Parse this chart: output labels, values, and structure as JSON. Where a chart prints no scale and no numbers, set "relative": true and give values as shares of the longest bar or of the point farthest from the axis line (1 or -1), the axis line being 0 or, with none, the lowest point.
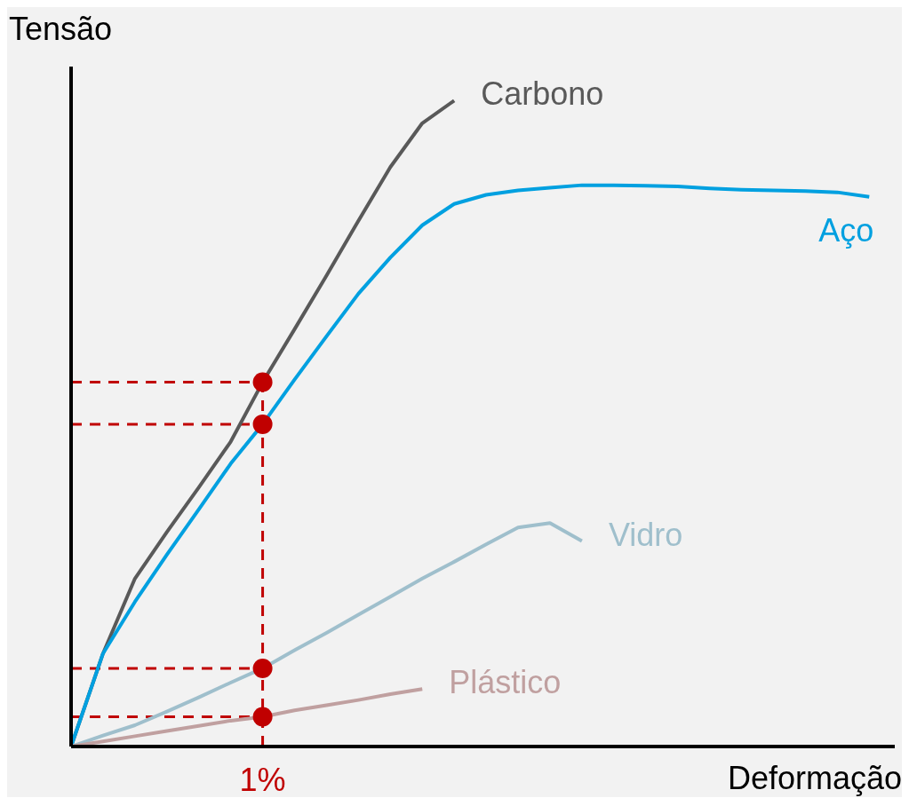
{
  "chart_data": {
    "type": "line",
    "relative": true,
    "xlabel": "Deformação",
    "ylabel": "Tensão",
    "grid": false,
    "legend": false,
    "marker": "none",
    "categories": [
      null,
      null,
      null,
      null,
      null,
      null,
      null,
      null,
      null,
      null,
      null,
      null,
      null,
      null,
      null,
      null,
      null,
      null,
      null,
      null,
      null,
      null,
      null,
      null,
      null,
      null
    ],
    "annotations": [
      "1%"
    ],
    "ref_lines": [
      {
        "axis": "y",
        "value": 0.564,
        "color": "#c00000",
        "line_style": "dashed"
      },
      {
        "axis": "y",
        "value": 0.499,
        "color": "#c00000",
        "line_style": "dashed"
      },
      {
        "axis": "y",
        "value": 0.121,
        "color": "#c00000",
        "line_style": "dashed"
      },
      {
        "axis": "y",
        "value": 0.046,
        "color": "#c00000",
        "line_style": "dashed"
      }
    ],
    "series": [
      {
        "name": "Carbono",
        "color": "#595959",
        "values": [
          0,
          0.144,
          0.26,
          0.332,
          0.401,
          0.472,
          0.564,
          0.646,
          0.729,
          0.814,
          0.897,
          0.965,
          1.0,
          null,
          null,
          null,
          null,
          null,
          null,
          null,
          null,
          null,
          null,
          null,
          null,
          null
        ]
      },
      {
        "name": "Aço",
        "color": "#00a0e0",
        "values": [
          0,
          0.144,
          0.224,
          0.297,
          0.367,
          0.438,
          0.499,
          0.568,
          0.635,
          0.701,
          0.757,
          0.807,
          0.84,
          0.854,
          0.861,
          0.865,
          0.869,
          0.869,
          0.868,
          0.867,
          0.864,
          0.862,
          0.861,
          0.86,
          0.858,
          0.851
        ]
      },
      {
        "name": "Vidro",
        "color": "#9fbfcc",
        "values": [
          0,
          0.017,
          0.033,
          0.054,
          0.076,
          0.099,
          0.121,
          0.149,
          0.176,
          0.204,
          0.232,
          0.26,
          0.286,
          0.313,
          0.339,
          0.346,
          0.318,
          null,
          null,
          null,
          null,
          null,
          null,
          null,
          null,
          null
        ]
      },
      {
        "name": "Plástico",
        "color": "#c0a0a0",
        "values": [
          0,
          0.008,
          0.016,
          0.024,
          0.032,
          0.04,
          0.046,
          0.056,
          0.064,
          0.072,
          0.081,
          0.089,
          null,
          null,
          null,
          null,
          null,
          null,
          null,
          null,
          null,
          null,
          null,
          null,
          null,
          null
        ]
      }
    ]
  }
}
